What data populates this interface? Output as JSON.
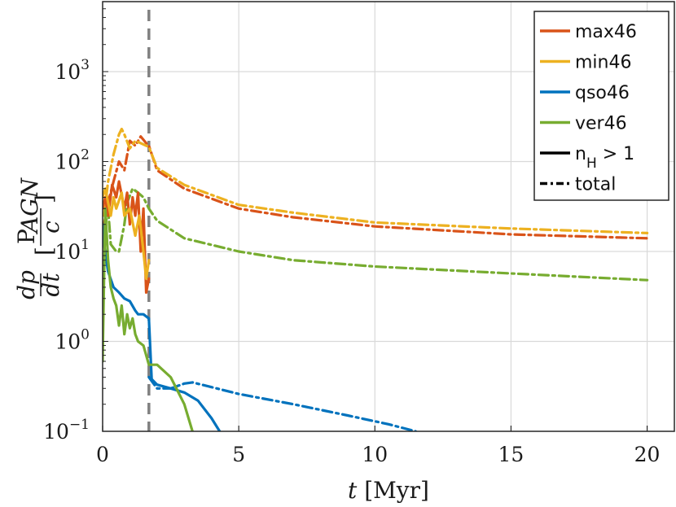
{
  "chart_data": {
    "type": "line",
    "title": "",
    "xlabel": "t [Myr]",
    "ylabel": "dp/dt [P_AGN / c]",
    "xlim": [
      0,
      21
    ],
    "ylim": [
      0.1,
      6000
    ],
    "yscale": "log",
    "grid": true,
    "legend_position": "top-right",
    "x_ticks": [
      0,
      5,
      10,
      15,
      20
    ],
    "x_tick_labels": [
      "0",
      "5",
      "10",
      "15",
      "20"
    ],
    "y_ticks": [
      0.1,
      1,
      10,
      100,
      1000
    ],
    "y_tick_labels": [
      {
        "base": "10",
        "exp": "−1"
      },
      {
        "base": "10",
        "exp": "0"
      },
      {
        "base": "10",
        "exp": "1"
      },
      {
        "base": "10",
        "exp": "2"
      },
      {
        "base": "10",
        "exp": "3"
      }
    ],
    "vertical_marker": {
      "x": 1.7,
      "style": "dashed",
      "color": "#808080"
    },
    "series": [
      {
        "name": "max46",
        "color": "#D95319",
        "style": "total",
        "x": [
          0.05,
          0.2,
          0.4,
          0.6,
          0.8,
          1.0,
          1.2,
          1.4,
          1.6,
          1.7,
          2.0,
          3.0,
          5.0,
          7.0,
          10.0,
          15.0,
          20.0
        ],
        "y": [
          20,
          35,
          60,
          100,
          80,
          170,
          150,
          190,
          160,
          150,
          80,
          50,
          30,
          24,
          19,
          15.5,
          14
        ]
      },
      {
        "name": "min46",
        "color": "#EDB120",
        "style": "total",
        "x": [
          0.05,
          0.2,
          0.4,
          0.6,
          0.7,
          0.8,
          1.0,
          1.2,
          1.4,
          1.6,
          1.7,
          2.0,
          3.0,
          5.0,
          7.0,
          10.0,
          15.0,
          20.0
        ],
        "y": [
          25,
          60,
          120,
          200,
          230,
          200,
          140,
          170,
          160,
          150,
          145,
          85,
          55,
          33,
          27,
          21,
          18,
          16
        ]
      },
      {
        "name": "qso46",
        "color": "#0072BD",
        "style": "total",
        "x": [
          1.7,
          2.0,
          2.5,
          3.0,
          3.3,
          4.0,
          5.0,
          7.0,
          9.0,
          10.5,
          11.5
        ],
        "y": [
          0.4,
          0.3,
          0.3,
          0.34,
          0.35,
          0.31,
          0.26,
          0.2,
          0.15,
          0.12,
          0.1
        ]
      },
      {
        "name": "ver46",
        "color": "#77AC30",
        "style": "total",
        "x": [
          0.05,
          0.2,
          0.3,
          0.5,
          0.6,
          0.8,
          0.9,
          1.1,
          1.3,
          1.5,
          1.7,
          2.0,
          3.0,
          5.0,
          7.0,
          10.0,
          15.0,
          20.0
        ],
        "y": [
          15,
          30,
          12,
          10,
          10,
          20,
          35,
          50,
          45,
          40,
          30,
          22,
          14,
          10,
          8,
          6.8,
          5.7,
          4.8
        ]
      },
      {
        "name": "max46",
        "color": "#D95319",
        "style": "nH>1",
        "x": [
          0.0,
          0.1,
          0.2,
          0.35,
          0.5,
          0.6,
          0.8,
          0.9,
          1.0,
          1.1,
          1.2,
          1.3,
          1.4,
          1.5,
          1.6,
          1.7
        ],
        "y": [
          30,
          40,
          25,
          55,
          40,
          60,
          30,
          45,
          20,
          40,
          25,
          45,
          10,
          30,
          3.5,
          5
        ]
      },
      {
        "name": "min46",
        "color": "#EDB120",
        "style": "nH>1",
        "x": [
          0.0,
          0.1,
          0.2,
          0.3,
          0.4,
          0.5,
          0.7,
          0.8,
          1.0,
          1.2,
          1.35,
          1.5,
          1.6,
          1.7
        ],
        "y": [
          40,
          50,
          35,
          25,
          40,
          30,
          45,
          25,
          30,
          15,
          25,
          10,
          5,
          8
        ]
      },
      {
        "name": "qso46",
        "color": "#0072BD",
        "style": "nH>1",
        "x": [
          0.0,
          0.05,
          0.2,
          0.4,
          0.6,
          0.8,
          1.0,
          1.2,
          1.3,
          1.5,
          1.7,
          1.8,
          2.0,
          2.5,
          3.0,
          3.5,
          4.0,
          4.3
        ],
        "y": [
          20,
          12,
          6,
          4,
          3.5,
          3,
          2.8,
          2.2,
          2.0,
          2.0,
          1.8,
          0.38,
          0.33,
          0.3,
          0.27,
          0.22,
          0.14,
          0.1
        ]
      },
      {
        "name": "ver46",
        "color": "#77AC30",
        "style": "nH>1",
        "x": [
          0.0,
          0.05,
          0.1,
          0.2,
          0.3,
          0.4,
          0.5,
          0.6,
          0.7,
          0.8,
          0.9,
          1.0,
          1.1,
          1.2,
          1.3,
          1.5,
          1.7,
          2.0,
          2.5,
          3.0,
          3.3
        ],
        "y": [
          0.6,
          5,
          30,
          8,
          4,
          3,
          2.5,
          1.5,
          2.5,
          1.2,
          2.0,
          1.4,
          1.8,
          1.2,
          1.0,
          0.9,
          0.55,
          0.55,
          0.4,
          0.2,
          0.1
        ]
      }
    ],
    "legend": [
      {
        "label": "max46",
        "color": "#D95319",
        "style": "solid"
      },
      {
        "label": "min46",
        "color": "#EDB120",
        "style": "solid"
      },
      {
        "label": "qso46",
        "color": "#0072BD",
        "style": "solid"
      },
      {
        "label": "ver46",
        "color": "#77AC30",
        "style": "solid"
      },
      {
        "label": "n",
        "sub": "H",
        "suffix": " > 1",
        "color": "#000000",
        "style": "solid"
      },
      {
        "label": "total",
        "color": "#000000",
        "style": "dashdot"
      }
    ]
  }
}
